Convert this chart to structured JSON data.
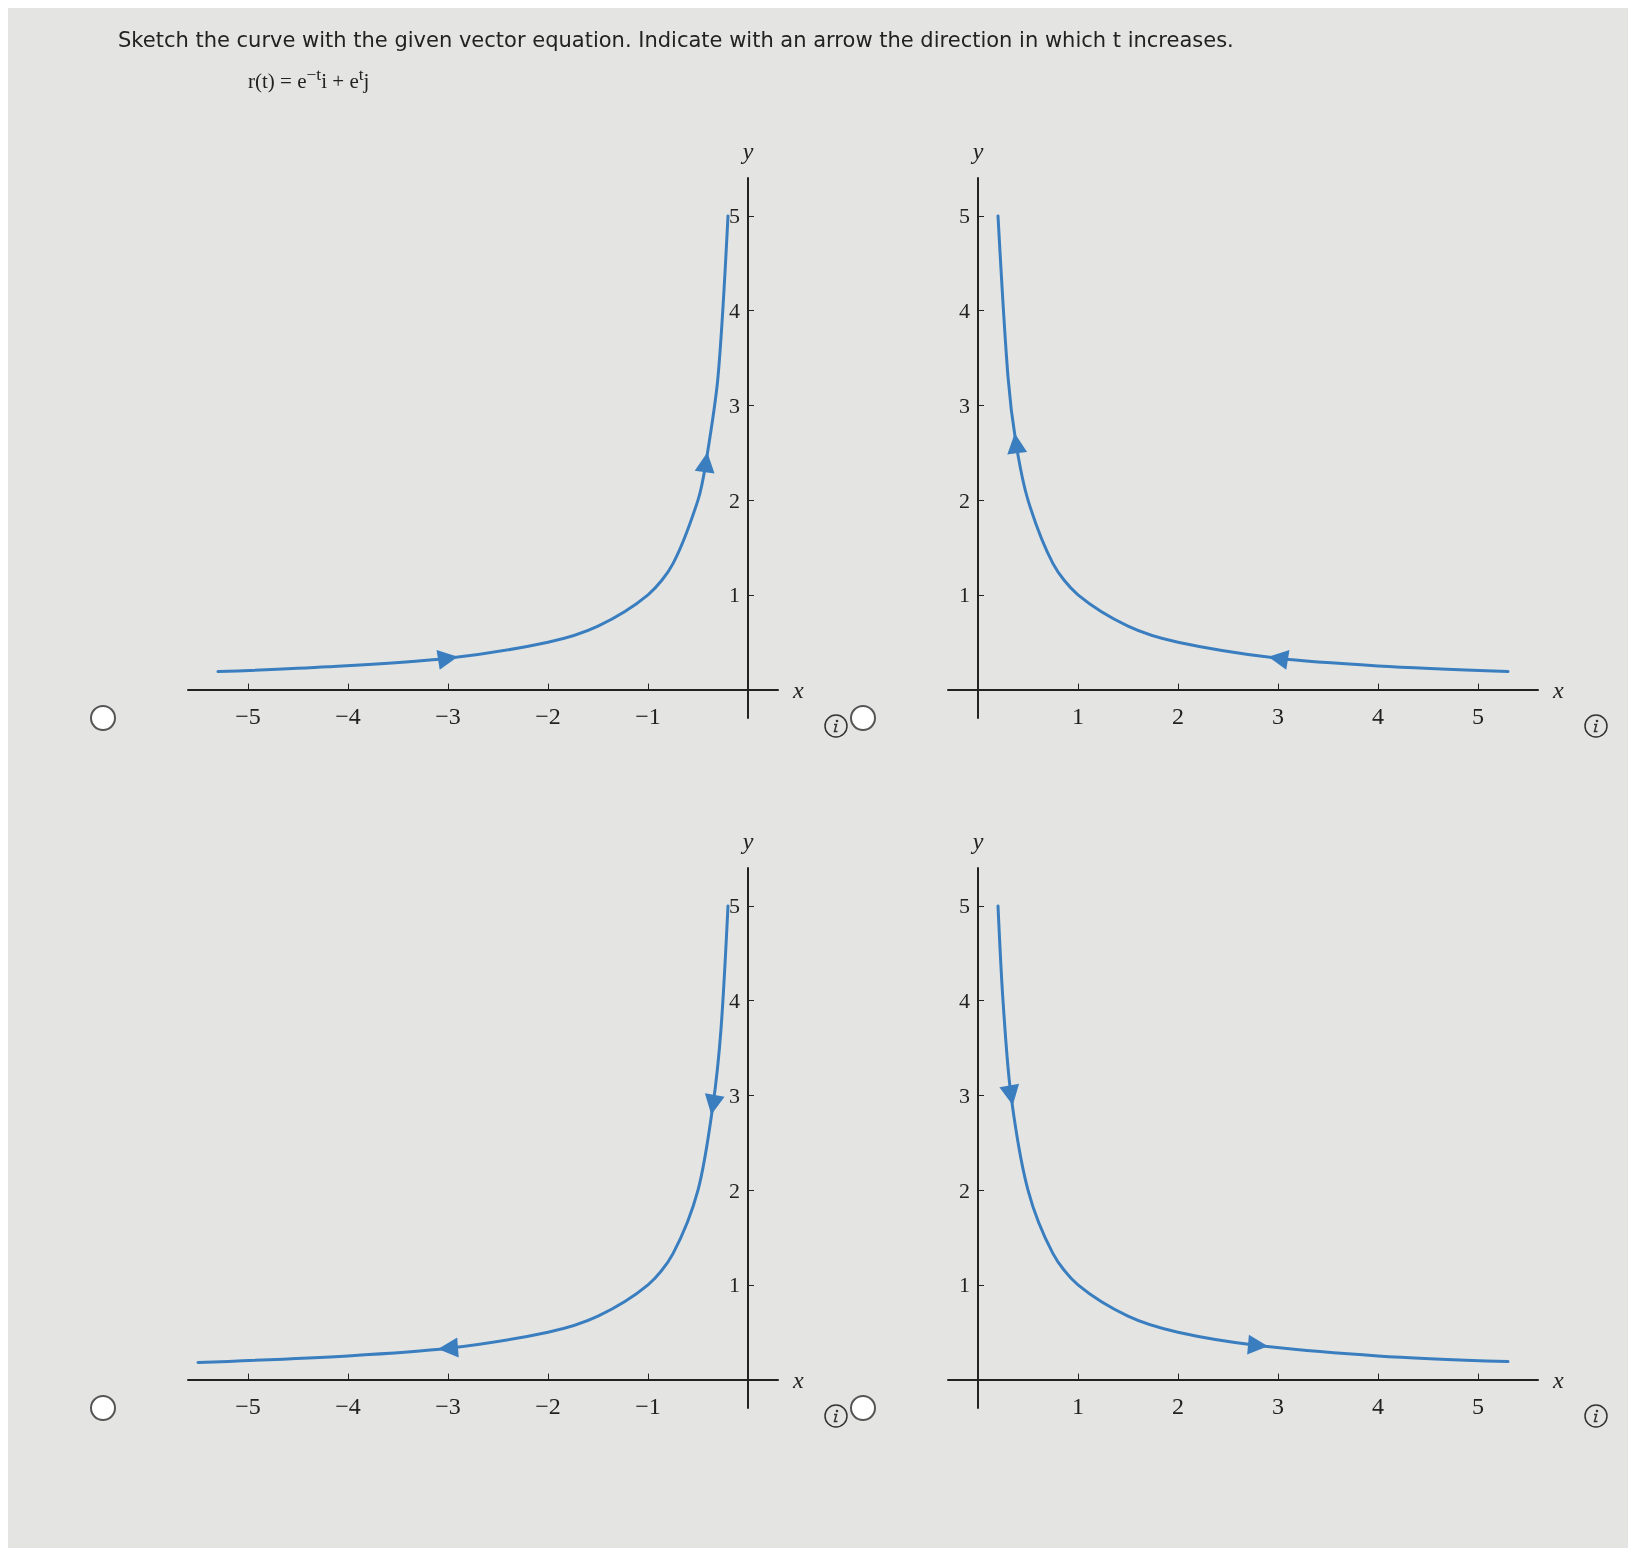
{
  "chart_data": [
    {
      "type": "line",
      "title": "Sketch the curve with the given vector equation. Indicate with an arrow the direction in which t increases.",
      "subtitle": "r(t) = e$^{−t}$i + e$^{t}$j",
      "xlabel": "x",
      "ylabel": "y",
      "xlim": [
        -5.6,
        0.3
      ],
      "ylim": [
        -0.3,
        5.4
      ],
      "xticks": [
        -5,
        -4,
        -3,
        -2,
        -1
      ],
      "yticks": [
        1,
        2,
        3,
        4,
        5
      ],
      "grid": false,
      "series": [
        {
          "color": "#3a7ebf",
          "x": [
            -5.3,
            -4.2,
            -3,
            -2,
            -1.5,
            -1,
            -0.75,
            -0.5,
            -0.42,
            -0.3,
            -0.2
          ],
          "values": [
            0.19,
            0.24,
            0.33,
            0.5,
            0.67,
            1,
            1.33,
            2,
            2.4,
            3.3,
            5
          ]
        }
      ]
    },
    {
      "type": "line",
      "xlabel": "x",
      "ylabel": "y",
      "xlim": [
        -0.3,
        5.6
      ],
      "ylim": [
        -0.3,
        5.4
      ],
      "xticks": [
        1,
        2,
        3,
        4,
        5
      ],
      "yticks": [
        1,
        2,
        3,
        4,
        5
      ],
      "grid": false,
      "series": [
        {
          "color": "#3a7ebf",
          "x": [
            5.3,
            4,
            3,
            2,
            1.5,
            1,
            0.75,
            0.5,
            0.38,
            0.3,
            0.2
          ],
          "values": [
            0.19,
            0.25,
            0.33,
            0.5,
            0.67,
            1,
            1.33,
            2,
            2.6,
            3.3,
            5
          ]
        }
      ]
    },
    {
      "type": "line",
      "xlabel": "x",
      "ylabel": "y",
      "xlim": [
        -5.6,
        0.3
      ],
      "ylim": [
        -0.3,
        5.4
      ],
      "xticks": [
        -5,
        -4,
        -3,
        -2,
        -1
      ],
      "yticks": [
        1,
        2,
        3,
        4,
        5
      ],
      "grid": false,
      "series": [
        {
          "color": "#3a7ebf",
          "x": [
            -0.2,
            -0.27,
            -0.35,
            -0.5,
            -0.75,
            -1,
            -1.5,
            -2,
            -3,
            -4,
            -5.5
          ],
          "values": [
            5,
            3.7,
            2.9,
            2,
            1.33,
            1,
            0.67,
            0.5,
            0.33,
            0.25,
            0.18
          ]
        }
      ]
    },
    {
      "type": "line",
      "xlabel": "x",
      "ylabel": "y",
      "xlim": [
        -0.3,
        5.6
      ],
      "ylim": [
        -0.3,
        5.4
      ],
      "xticks": [
        1,
        2,
        3,
        4,
        5
      ],
      "yticks": [
        1,
        2,
        3,
        4,
        5
      ],
      "grid": false,
      "series": [
        {
          "color": "#3a7ebf",
          "x": [
            0.2,
            0.25,
            0.33,
            0.5,
            0.75,
            1,
            1.5,
            2,
            2.8,
            4,
            5.3
          ],
          "values": [
            5,
            4,
            3,
            2,
            1.33,
            1,
            0.67,
            0.5,
            0.36,
            0.25,
            0.19
          ]
        }
      ]
    }
  ]
}
